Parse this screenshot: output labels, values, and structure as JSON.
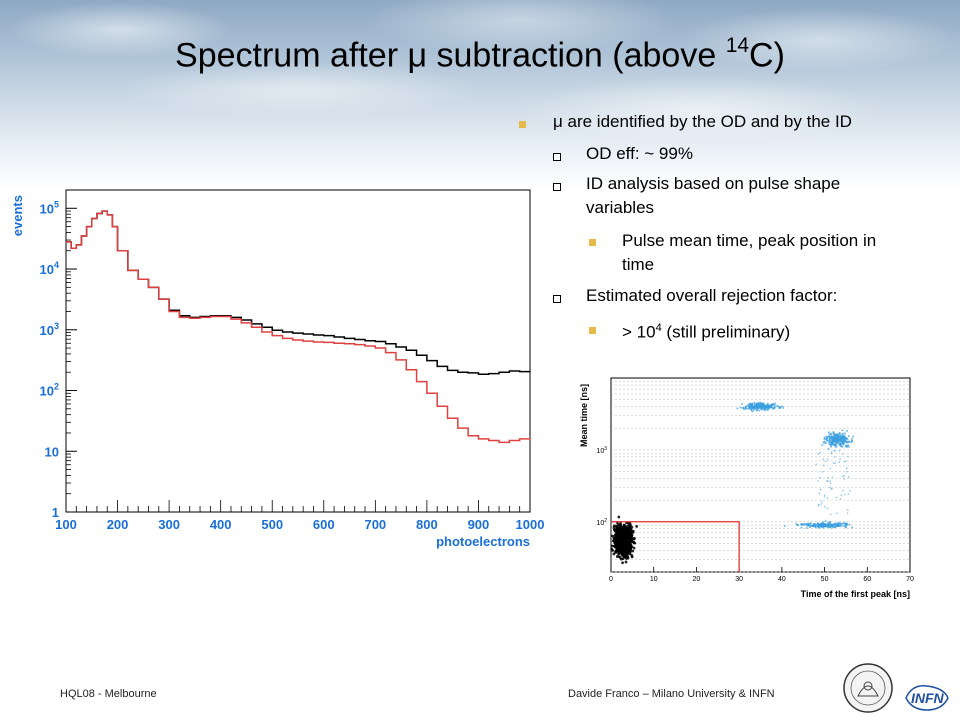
{
  "slide": {
    "title_pre": "Spectrum after ",
    "title_mu": "μ",
    "title_mid": " subtraction (above ",
    "title_sup": "14",
    "title_post": "C)"
  },
  "bullets": [
    {
      "text": "μ are identified by the OD and by the ID",
      "level": 1
    },
    {
      "text": "OD eff: ~ 99%",
      "level": 2
    },
    {
      "text": "ID analysis based on pulse shape",
      "text2": "variables",
      "level": 2
    },
    {
      "text": "Pulse mean time, peak position in",
      "text2": "time",
      "level": 3
    },
    {
      "text": "Estimated overall rejection factor:",
      "level": 2
    },
    {
      "text_pre": "> 10",
      "text_sup": "4",
      "text_post": " (still preliminary)",
      "level": 3
    }
  ],
  "footer": {
    "left": "HQL08  - Melbourne",
    "right": "Davide Franco – Milano University & INFN",
    "logo_text": "INFN"
  },
  "chart_data": [
    {
      "type": "line",
      "title": "",
      "xlabel": "photoelectrons",
      "ylabel": "events",
      "xlim": [
        100,
        1000
      ],
      "ylim": [
        1,
        200000
      ],
      "y_scale": "log",
      "x_ticks": [
        "100",
        "200",
        "300",
        "400",
        "500",
        "600",
        "700",
        "800",
        "900",
        "1000"
      ],
      "y_ticks": [
        {
          "base": "10",
          "exp": "5",
          "v": 100000
        },
        {
          "base": "10",
          "exp": "4",
          "v": 10000
        },
        {
          "base": "10",
          "exp": "3",
          "v": 1000
        },
        {
          "base": "10",
          "exp": "2",
          "v": 100
        },
        {
          "base": "10",
          "exp": "",
          "v": 10
        },
        {
          "base": "1",
          "exp": "",
          "v": 1
        }
      ],
      "axis_color": "#1a6fd6",
      "series": [
        {
          "color": "#000000",
          "x": [
            100,
            110,
            120,
            130,
            140,
            150,
            160,
            170,
            180,
            190,
            200,
            220,
            240,
            260,
            280,
            300,
            320,
            340,
            360,
            380,
            400,
            420,
            440,
            460,
            480,
            500,
            520,
            540,
            560,
            580,
            600,
            620,
            640,
            660,
            680,
            700,
            720,
            740,
            760,
            780,
            800,
            820,
            840,
            860,
            880,
            900,
            920,
            940,
            960,
            980,
            1000
          ],
          "y": [
            28000,
            22000,
            25000,
            35000,
            50000,
            68000,
            82000,
            90000,
            78000,
            50000,
            20000,
            9500,
            6800,
            5000,
            3200,
            2100,
            1700,
            1600,
            1650,
            1700,
            1700,
            1600,
            1450,
            1250,
            1100,
            980,
            920,
            880,
            850,
            820,
            800,
            760,
            720,
            690,
            660,
            640,
            590,
            520,
            460,
            380,
            310,
            250,
            215,
            200,
            195,
            185,
            190,
            200,
            210,
            205,
            200
          ]
        },
        {
          "color": "#e04040",
          "x": [
            100,
            110,
            120,
            130,
            140,
            150,
            160,
            170,
            180,
            190,
            200,
            220,
            240,
            260,
            280,
            300,
            320,
            340,
            360,
            380,
            400,
            420,
            440,
            460,
            480,
            500,
            520,
            540,
            560,
            580,
            600,
            620,
            640,
            660,
            680,
            700,
            720,
            740,
            760,
            780,
            800,
            820,
            840,
            860,
            880,
            900,
            920,
            940,
            960,
            980,
            1000
          ],
          "y": [
            28000,
            22000,
            25000,
            35000,
            50000,
            68000,
            82000,
            90000,
            78000,
            50000,
            20000,
            9500,
            6800,
            5000,
            3200,
            2000,
            1600,
            1550,
            1600,
            1650,
            1650,
            1500,
            1300,
            1100,
            920,
            800,
            720,
            680,
            650,
            630,
            620,
            600,
            590,
            570,
            540,
            500,
            420,
            320,
            220,
            140,
            90,
            55,
            35,
            24,
            18,
            16,
            15,
            14,
            15,
            16,
            15
          ]
        }
      ]
    },
    {
      "type": "scatter",
      "title": "",
      "xlabel": "Time of the first peak [ns]",
      "ylabel": "Mean time [ns]",
      "xlim": [
        0,
        70
      ],
      "y_scale": "log",
      "x_ticks": [
        "0",
        "10",
        "20",
        "30",
        "40",
        "50",
        "60",
        "70"
      ],
      "y_ticks": [
        {
          "base": "10",
          "exp": "2",
          "v": 100
        },
        {
          "base": "10",
          "exp": "3",
          "v": 1000
        }
      ],
      "cut_box": {
        "x": [
          0,
          30
        ],
        "y_max": 100,
        "color": "#e03030"
      },
      "clusters": [
        {
          "label": "",
          "color": "#000000",
          "x_center": 3,
          "y_center": 55
        },
        {
          "label": "",
          "color": "#3a9fe0",
          "x_center": 35,
          "y_center": 4000
        },
        {
          "label": "",
          "color": "#3a9fe0",
          "x_center": 53,
          "y_center": 1400
        },
        {
          "label": "",
          "color": "#3a9fe0",
          "x_center": 50,
          "y_center": 90
        }
      ]
    }
  ]
}
